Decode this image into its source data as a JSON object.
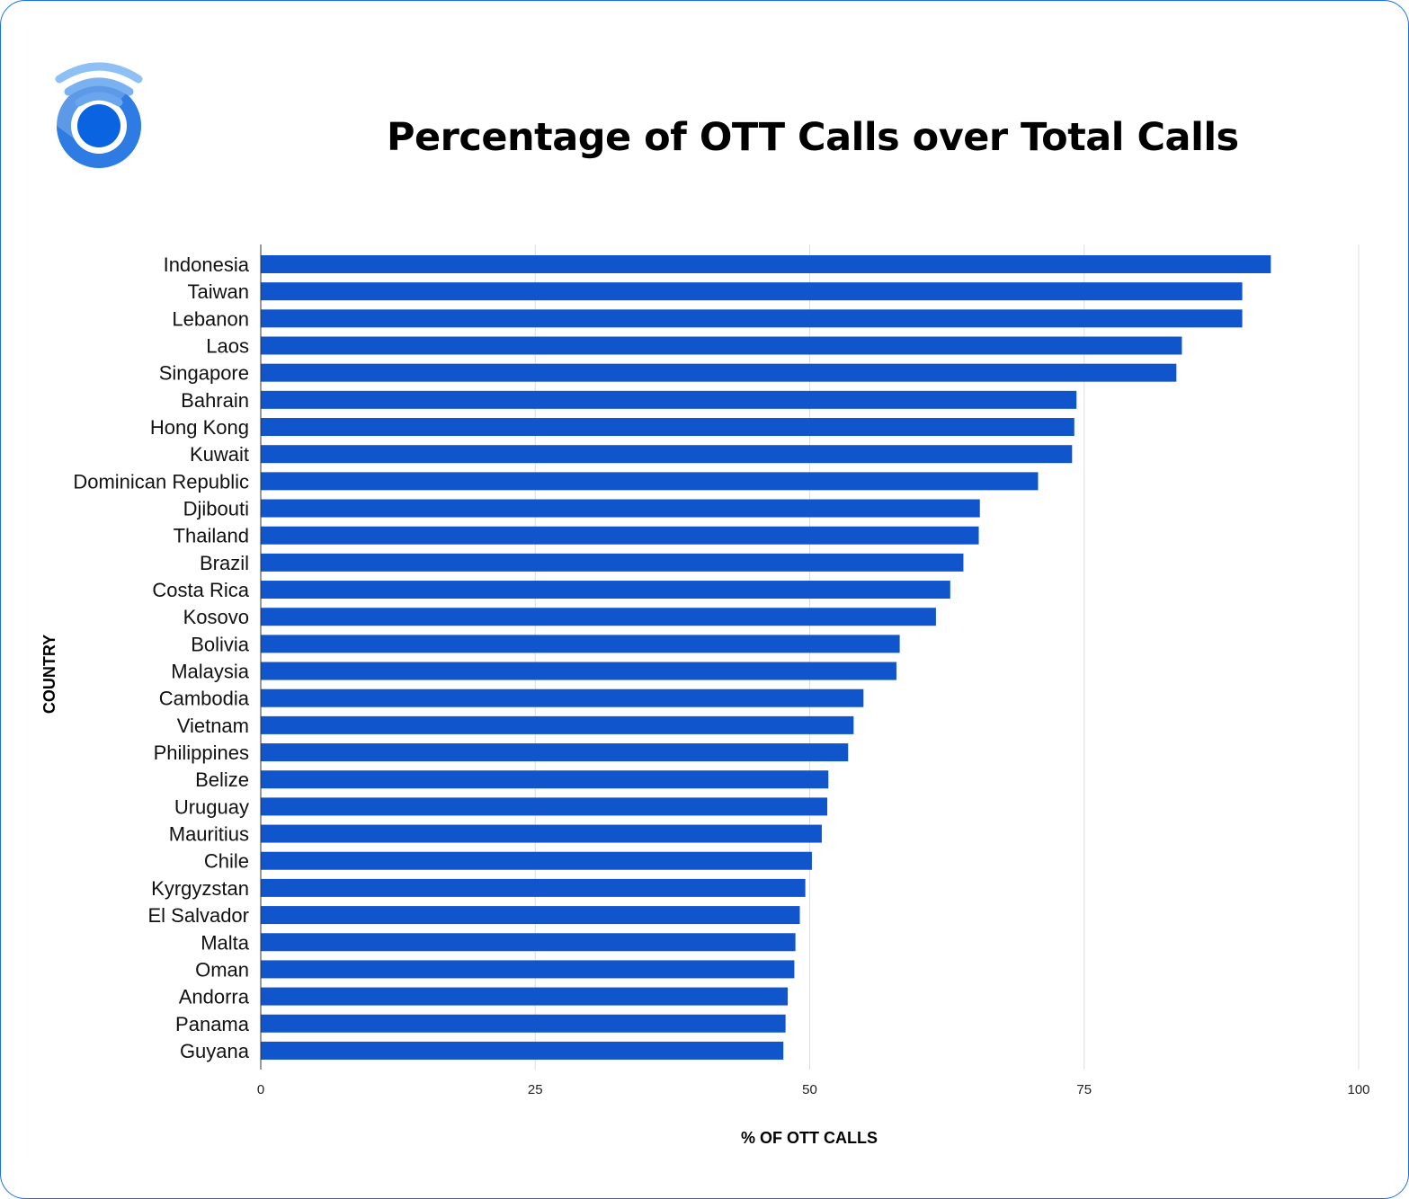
{
  "chart_data": {
    "type": "bar",
    "orientation": "horizontal",
    "title": "Percentage of OTT Calls over Total Calls",
    "xlabel": "% OF OTT CALLS",
    "ylabel": "COUNTRY",
    "xlim": [
      0,
      100
    ],
    "xticks": [
      "0",
      "25",
      "50",
      "75",
      "100"
    ],
    "grid": true,
    "bar_color": "#1155cc",
    "categories": [
      "Indonesia",
      "Taiwan",
      "Lebanon",
      "Laos",
      "Singapore",
      "Bahrain",
      "Hong Kong",
      "Kuwait",
      "Dominican Republic",
      "Djibouti",
      "Thailand",
      "Brazil",
      "Costa Rica",
      "Kosovo",
      "Bolivia",
      "Malaysia",
      "Cambodia",
      "Vietnam",
      "Philippines",
      "Belize",
      "Uruguay",
      "Mauritius",
      "Chile",
      "Kyrgyzstan",
      "El Salvador",
      "Malta",
      "Oman",
      "Andorra",
      "Panama",
      "Guyana"
    ],
    "values": [
      92.0,
      89.4,
      89.4,
      83.9,
      83.4,
      74.3,
      74.1,
      73.9,
      70.8,
      65.5,
      65.4,
      64.0,
      62.8,
      61.5,
      58.2,
      57.9,
      54.9,
      54.0,
      53.5,
      51.7,
      51.6,
      51.1,
      50.2,
      49.6,
      49.1,
      48.7,
      48.6,
      48.0,
      47.8,
      47.6
    ]
  },
  "logo": {
    "icon": "wifi-signal-logo-icon"
  }
}
